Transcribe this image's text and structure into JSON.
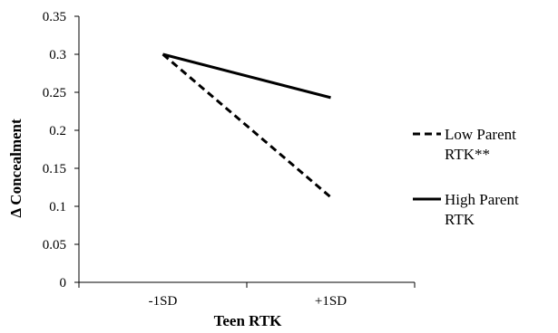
{
  "chart_data": {
    "type": "line",
    "title": "",
    "xlabel": "Teen RTK",
    "ylabel": "Δ Concealment",
    "categories": [
      "-1SD",
      "+1SD"
    ],
    "ylim": [
      0,
      0.35
    ],
    "yticks": [
      0,
      0.05,
      0.1,
      0.15,
      0.2,
      0.25,
      0.3,
      0.35
    ],
    "ytick_labels": [
      "0",
      "0.05",
      "0.1",
      "0.15",
      "0.2",
      "0.25",
      "0.3",
      "0.35"
    ],
    "grid": false,
    "legend_position": "right",
    "series": [
      {
        "name": "Low Parent RTK**",
        "name_lines": [
          "Low Parent",
          "RTK**"
        ],
        "style": "dashed",
        "color": "#000000",
        "values": [
          0.3,
          0.112
        ]
      },
      {
        "name": "High Parent RTK",
        "name_lines": [
          "High Parent",
          "RTK"
        ],
        "style": "solid",
        "color": "#000000",
        "values": [
          0.3,
          0.243
        ]
      }
    ]
  }
}
